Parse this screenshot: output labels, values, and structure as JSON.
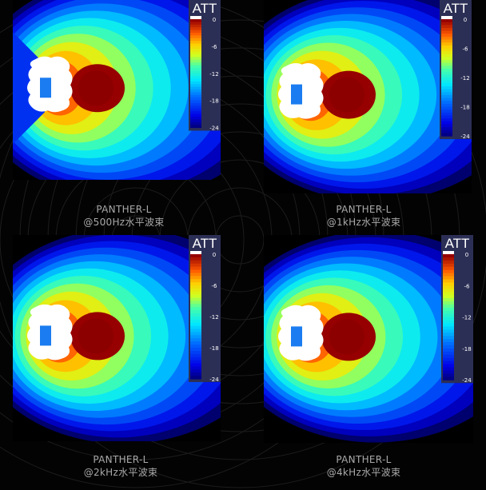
{
  "chart_data": [
    {
      "type": "heatmap",
      "model": "PANTHER-L",
      "caption": "@500Hz水平波束",
      "colorbar": {
        "title": "ATT",
        "ticks": [
          "0",
          "-6",
          "-12",
          "-18",
          "-24"
        ],
        "range": [
          -24,
          0
        ]
      },
      "spread": 1.0
    },
    {
      "type": "heatmap",
      "model": "PANTHER-L",
      "caption": "@1kHz水平波束",
      "colorbar": {
        "title": "ATT",
        "ticks": [
          "0",
          "-6",
          "-12",
          "-18",
          "-24"
        ],
        "range": [
          -24,
          0
        ]
      },
      "spread": 0.75
    },
    {
      "type": "heatmap",
      "model": "PANTHER-L",
      "caption": "@2kHz水平波束",
      "colorbar": {
        "title": "ATT",
        "ticks": [
          "0",
          "-6",
          "-12",
          "-18",
          "-24"
        ],
        "range": [
          -24,
          0
        ]
      },
      "spread": 0.65
    },
    {
      "type": "heatmap",
      "model": "PANTHER-L",
      "caption": "@4kHz水平波束",
      "colorbar": {
        "title": "ATT",
        "ticks": [
          "0",
          "-6",
          "-12",
          "-18",
          "-24"
        ],
        "range": [
          -24,
          0
        ]
      },
      "spread": 0.6
    }
  ]
}
